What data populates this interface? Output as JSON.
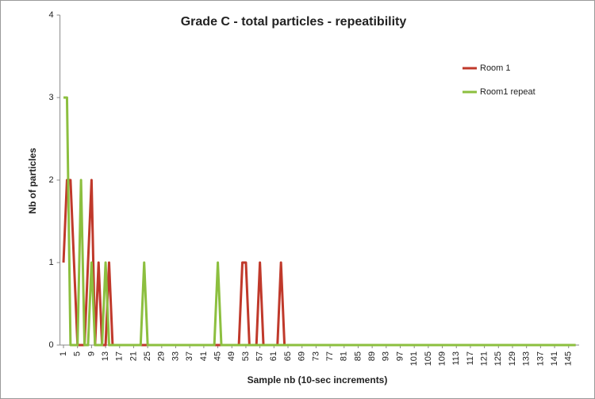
{
  "chart_data": {
    "type": "line",
    "title": "Grade C - total particles  - repeatibility",
    "x_label": "Sample nb (10-sec increments)",
    "y_label": "Nb of particles",
    "x": [
      1,
      2,
      3,
      4,
      5,
      6,
      7,
      8,
      9,
      10,
      11,
      12,
      13,
      14,
      15,
      16,
      17,
      18,
      19,
      20,
      21,
      22,
      23,
      24,
      25,
      26,
      27,
      28,
      29,
      30,
      31,
      32,
      33,
      34,
      35,
      36,
      37,
      38,
      39,
      40,
      41,
      42,
      43,
      44,
      45,
      46,
      47,
      48,
      49,
      50,
      51,
      52,
      53,
      54,
      55,
      56,
      57,
      58,
      59,
      60,
      61,
      62,
      63,
      64,
      65,
      66,
      67,
      68,
      69,
      70,
      71,
      72,
      73,
      74,
      75,
      76,
      77,
      78,
      79,
      80,
      81,
      82,
      83,
      84,
      85,
      86,
      87,
      88,
      89,
      90,
      91,
      92,
      93,
      94,
      95,
      96,
      97,
      98,
      99,
      100,
      101,
      102,
      103,
      104,
      105,
      106,
      107,
      108,
      109,
      110,
      111,
      112,
      113,
      114,
      115,
      116,
      117,
      118,
      119,
      120,
      121,
      122,
      123,
      124,
      125,
      126,
      127,
      128,
      129,
      130,
      131,
      132,
      133,
      134,
      135,
      136,
      137,
      138,
      139,
      140,
      141,
      142,
      143,
      144,
      145,
      146,
      147
    ],
    "series": [
      {
        "name": "Room 1",
        "color": "#c0392b",
        "values": [
          1,
          2,
          2,
          1,
          0,
          0,
          0,
          1,
          2,
          0,
          1,
          0,
          0,
          1,
          0,
          0,
          0,
          0,
          0,
          0,
          0,
          0,
          0,
          0,
          0,
          0,
          0,
          0,
          0,
          0,
          0,
          0,
          0,
          0,
          0,
          0,
          0,
          0,
          0,
          0,
          0,
          0,
          0,
          0,
          0,
          0,
          0,
          0,
          0,
          0,
          0,
          1,
          1,
          0,
          0,
          0,
          1,
          0,
          0,
          0,
          0,
          0,
          1,
          0,
          0,
          0,
          0,
          0,
          0,
          0,
          0,
          0,
          0,
          0,
          0,
          0,
          0,
          0,
          0,
          0,
          0,
          0,
          0,
          0,
          0,
          0,
          0,
          0,
          0,
          0,
          0,
          0,
          0,
          0,
          0,
          0,
          0,
          0,
          0,
          0,
          0,
          0,
          0,
          0,
          0,
          0,
          0,
          0,
          0,
          0,
          0,
          0,
          0,
          0,
          0,
          0,
          0,
          0,
          0,
          0,
          0,
          0,
          0,
          0,
          0,
          0,
          0,
          0,
          0,
          0,
          0,
          0,
          0,
          0,
          0,
          0,
          0,
          0,
          0,
          0,
          0,
          0,
          0,
          0,
          0,
          0,
          0
        ]
      },
      {
        "name": "Room1 repeat",
        "color": "#8cbf3f",
        "values": [
          3,
          3,
          0,
          0,
          0,
          2,
          0,
          0,
          1,
          0,
          0,
          0,
          1,
          0,
          0,
          0,
          0,
          0,
          0,
          0,
          0,
          0,
          0,
          1,
          0,
          0,
          0,
          0,
          0,
          0,
          0,
          0,
          0,
          0,
          0,
          0,
          0,
          0,
          0,
          0,
          0,
          0,
          0,
          0,
          1,
          0,
          0,
          0,
          0,
          0,
          0,
          0,
          0,
          0,
          0,
          0,
          0,
          0,
          0,
          0,
          0,
          0,
          0,
          0,
          0,
          0,
          0,
          0,
          0,
          0,
          0,
          0,
          0,
          0,
          0,
          0,
          0,
          0,
          0,
          0,
          0,
          0,
          0,
          0,
          0,
          0,
          0,
          0,
          0,
          0,
          0,
          0,
          0,
          0,
          0,
          0,
          0,
          0,
          0,
          0,
          0,
          0,
          0,
          0,
          0,
          0,
          0,
          0,
          0,
          0,
          0,
          0,
          0,
          0,
          0,
          0,
          0,
          0,
          0,
          0,
          0,
          0,
          0,
          0,
          0,
          0,
          0,
          0,
          0,
          0,
          0,
          0,
          0,
          0,
          0,
          0,
          0,
          0,
          0,
          0,
          0,
          0,
          0,
          0,
          0,
          0,
          0
        ]
      }
    ],
    "xlim": [
      0,
      148
    ],
    "xticks": [
      1,
      5,
      9,
      13,
      17,
      21,
      25,
      29,
      33,
      37,
      41,
      45,
      49,
      53,
      57,
      61,
      65,
      69,
      73,
      77,
      81,
      85,
      89,
      93,
      97,
      101,
      105,
      109,
      113,
      117,
      121,
      125,
      129,
      133,
      137,
      141,
      145
    ],
    "ylim": [
      0,
      4
    ],
    "yticks": [
      0,
      1,
      2,
      3,
      4
    ],
    "legend": "top-right"
  }
}
